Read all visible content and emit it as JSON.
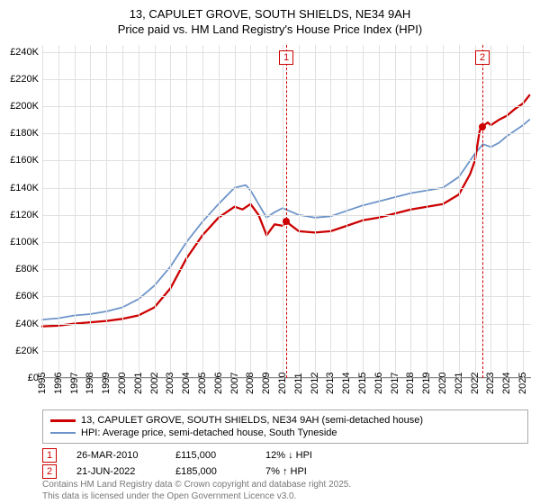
{
  "title_line1": "13, CAPULET GROVE, SOUTH SHIELDS, NE34 9AH",
  "title_line2": "Price paid vs. HM Land Registry's House Price Index (HPI)",
  "chart": {
    "type": "line",
    "background_color": "#ffffff",
    "grid_color": "#e0e0e0",
    "shade_color": "rgba(200,215,235,0.35)",
    "x": {
      "min": 1995,
      "max": 2025.5,
      "ticks": [
        1995,
        1996,
        1997,
        1998,
        1999,
        2000,
        2001,
        2002,
        2003,
        2004,
        2005,
        2006,
        2007,
        2008,
        2009,
        2010,
        2011,
        2012,
        2013,
        2014,
        2015,
        2016,
        2017,
        2018,
        2019,
        2020,
        2021,
        2022,
        2023,
        2024,
        2025
      ],
      "shade_ranges": [
        [
          2010,
          2015
        ],
        [
          2020,
          2025.5
        ]
      ]
    },
    "y": {
      "min": 0,
      "max": 245000,
      "ticks": [
        0,
        20000,
        40000,
        60000,
        80000,
        100000,
        120000,
        140000,
        160000,
        180000,
        200000,
        220000,
        240000
      ],
      "tick_labels": [
        "£0",
        "£20K",
        "£40K",
        "£60K",
        "£80K",
        "£100K",
        "£120K",
        "£140K",
        "£160K",
        "£180K",
        "£200K",
        "£220K",
        "£240K"
      ]
    },
    "series": [
      {
        "name": "price_paid",
        "color": "#cc0000",
        "width": 2.3,
        "points": [
          [
            1995,
            38000
          ],
          [
            1996,
            38500
          ],
          [
            1997,
            40000
          ],
          [
            1998,
            41000
          ],
          [
            1999,
            42000
          ],
          [
            2000,
            43500
          ],
          [
            2001,
            46000
          ],
          [
            2002,
            52000
          ],
          [
            2003,
            66000
          ],
          [
            2004,
            88000
          ],
          [
            2005,
            105000
          ],
          [
            2006,
            118000
          ],
          [
            2007,
            126000
          ],
          [
            2007.5,
            124000
          ],
          [
            2008,
            128000
          ],
          [
            2008.5,
            120000
          ],
          [
            2009,
            105000
          ],
          [
            2009.5,
            113000
          ],
          [
            2010,
            112000
          ],
          [
            2010.23,
            115000
          ],
          [
            2011,
            108000
          ],
          [
            2012,
            107000
          ],
          [
            2013,
            108000
          ],
          [
            2014,
            112000
          ],
          [
            2015,
            116000
          ],
          [
            2016,
            118000
          ],
          [
            2017,
            121000
          ],
          [
            2018,
            124000
          ],
          [
            2019,
            126000
          ],
          [
            2020,
            128000
          ],
          [
            2021,
            135000
          ],
          [
            2021.7,
            150000
          ],
          [
            2022,
            160000
          ],
          [
            2022.3,
            182000
          ],
          [
            2022.47,
            185000
          ],
          [
            2022.8,
            188000
          ],
          [
            2023,
            186000
          ],
          [
            2023.5,
            190000
          ],
          [
            2024,
            193000
          ],
          [
            2024.5,
            198000
          ],
          [
            2025,
            202000
          ],
          [
            2025.4,
            208000
          ]
        ]
      },
      {
        "name": "hpi",
        "color": "#6d94c9",
        "width": 1.8,
        "points": [
          [
            1995,
            43000
          ],
          [
            1996,
            44000
          ],
          [
            1997,
            46000
          ],
          [
            1998,
            47000
          ],
          [
            1999,
            49000
          ],
          [
            2000,
            52000
          ],
          [
            2001,
            58000
          ],
          [
            2002,
            68000
          ],
          [
            2003,
            82000
          ],
          [
            2004,
            100000
          ],
          [
            2005,
            115000
          ],
          [
            2006,
            128000
          ],
          [
            2007,
            140000
          ],
          [
            2007.7,
            142000
          ],
          [
            2008,
            138000
          ],
          [
            2008.5,
            128000
          ],
          [
            2009,
            118000
          ],
          [
            2009.5,
            122000
          ],
          [
            2010,
            125000
          ],
          [
            2011,
            120000
          ],
          [
            2012,
            118000
          ],
          [
            2013,
            119000
          ],
          [
            2014,
            123000
          ],
          [
            2015,
            127000
          ],
          [
            2016,
            130000
          ],
          [
            2017,
            133000
          ],
          [
            2018,
            136000
          ],
          [
            2019,
            138000
          ],
          [
            2020,
            140000
          ],
          [
            2021,
            148000
          ],
          [
            2022,
            165000
          ],
          [
            2022.5,
            172000
          ],
          [
            2023,
            170000
          ],
          [
            2023.5,
            173000
          ],
          [
            2024,
            178000
          ],
          [
            2024.5,
            182000
          ],
          [
            2025,
            186000
          ],
          [
            2025.4,
            190000
          ]
        ]
      }
    ],
    "markers": [
      {
        "id": "1",
        "x": 2010.23,
        "y": 115000,
        "dot_color": "#cc0000"
      },
      {
        "id": "2",
        "x": 2022.47,
        "y": 185000,
        "dot_color": "#cc0000"
      }
    ]
  },
  "legend": {
    "items": [
      {
        "color": "#cc0000",
        "width": 3,
        "label": "13, CAPULET GROVE, SOUTH SHIELDS, NE34 9AH (semi-detached house)"
      },
      {
        "color": "#6d94c9",
        "width": 2,
        "label": "HPI: Average price, semi-detached house, South Tyneside"
      }
    ]
  },
  "sales": [
    {
      "id": "1",
      "date": "26-MAR-2010",
      "price": "£115,000",
      "pct": "12%",
      "dir": "down",
      "suffix": "HPI"
    },
    {
      "id": "2",
      "date": "21-JUN-2022",
      "price": "£185,000",
      "pct": "7%",
      "dir": "up",
      "suffix": "HPI"
    }
  ],
  "footer_line1": "Contains HM Land Registry data © Crown copyright and database right 2025.",
  "footer_line2": "This data is licensed under the Open Government Licence v3.0.",
  "fontsize": {
    "title": 13,
    "axis": 11,
    "legend": 11,
    "footer": 10
  }
}
